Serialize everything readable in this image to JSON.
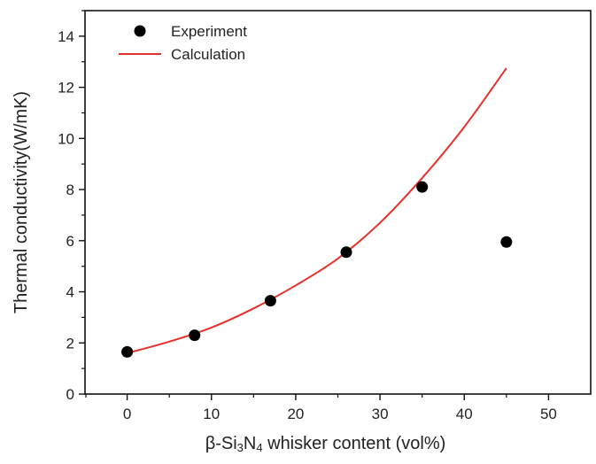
{
  "chart_data": {
    "type": "scatter",
    "xlabel": "β-Si3N4 whisker content (vol%)",
    "xlabel_parts": {
      "pre": "β-Si",
      "sub1": "3",
      "mid": "N",
      "sub2": "4",
      "post": " whisker content (vol%)"
    },
    "ylabel": "Thermal conductivity(W/mK)",
    "xlim": [
      -5,
      55
    ],
    "ylim": [
      0,
      15
    ],
    "xticks": [
      0,
      10,
      20,
      30,
      40,
      50
    ],
    "yticks": [
      0,
      2,
      4,
      6,
      8,
      10,
      12,
      14
    ],
    "grid": false,
    "legend_position": "top-left",
    "series": [
      {
        "name": "Experiment",
        "kind": "scatter",
        "color": "#000000",
        "x": [
          0,
          8,
          17,
          26,
          35,
          45
        ],
        "y": [
          1.65,
          2.3,
          3.65,
          5.55,
          8.1,
          5.95
        ]
      },
      {
        "name": "Calculation",
        "kind": "line",
        "color": "#e8302a",
        "x": [
          0,
          5,
          10,
          15,
          20,
          25,
          30,
          35,
          40,
          45
        ],
        "y": [
          1.6,
          2.05,
          2.6,
          3.35,
          4.25,
          5.3,
          6.7,
          8.45,
          10.45,
          12.75
        ]
      }
    ]
  }
}
